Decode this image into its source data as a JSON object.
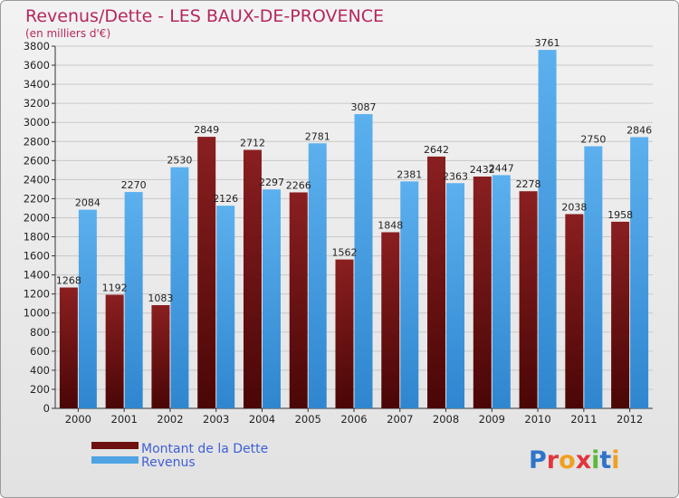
{
  "title": "Revenus/Dette - LES BAUX-DE-PROVENCE",
  "subtitle": "(en milliers d'€)",
  "logo": {
    "letters": [
      "P",
      "r",
      "o",
      "x",
      "i",
      "t",
      "i"
    ],
    "colors": [
      "#2f74c9",
      "#e2353d",
      "#f0a020",
      "#e2353d",
      "#5bb83a",
      "#2f74c9",
      "#f0a020"
    ]
  },
  "colors": {
    "dette": "#6e0f10",
    "revenus": "#4fa3e3",
    "title": "#b5275e",
    "legend_text": "#3f5fd6"
  },
  "chart_data": {
    "type": "bar",
    "categories": [
      "2000",
      "2001",
      "2002",
      "2003",
      "2004",
      "2005",
      "2006",
      "2007",
      "2008",
      "2009",
      "2010",
      "2011",
      "2012"
    ],
    "series": [
      {
        "name": "Montant de la Dette",
        "values": [
          1268,
          1192,
          1083,
          2849,
          2712,
          2266,
          1562,
          1848,
          2642,
          2432,
          2278,
          2038,
          1958
        ],
        "labels": [
          "1268",
          "1192",
          "1083",
          "2849",
          "2712",
          "2266",
          "1562",
          "1848",
          "2642",
          "2432",
          "2278",
          "2038",
          "1958"
        ]
      },
      {
        "name": "Revenus",
        "values": [
          2084,
          2270,
          2530,
          2126,
          2297,
          2781,
          3087,
          2381,
          2363,
          2447,
          3761,
          2750,
          2846
        ],
        "labels": [
          "2084",
          "2270",
          "2530",
          "2126",
          "2297",
          "2781",
          "3087",
          "2381",
          "2363",
          "2447",
          "3761",
          "2750",
          "2846"
        ]
      }
    ],
    "ylim": [
      0,
      3800
    ],
    "yticks": [
      "0",
      "200",
      "400",
      "600",
      "800",
      "1000",
      "1200",
      "1400",
      "1600",
      "1800",
      "2000",
      "2200",
      "2400",
      "2600",
      "2800",
      "3000",
      "3200",
      "3400",
      "3600",
      "3800"
    ],
    "grid": true,
    "legend_position": "bottom-left"
  }
}
